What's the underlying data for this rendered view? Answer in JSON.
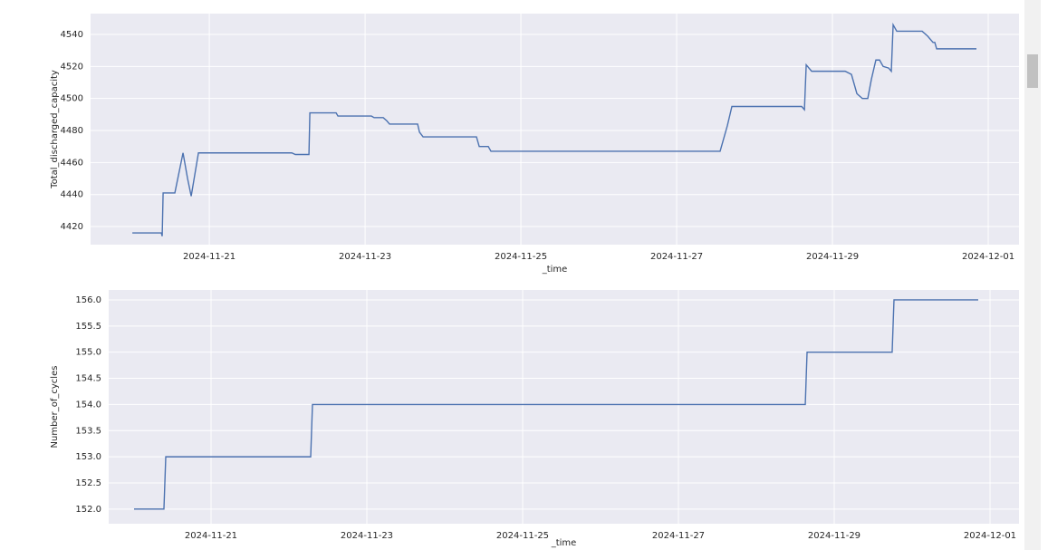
{
  "chart_data": [
    {
      "type": "line",
      "x_label": "_time",
      "y_label": "Total_discharged_capacity",
      "color": "#4c72b0",
      "grid": true,
      "xlim": [
        "2024-11-19T11:25",
        "2024-12-01T09:29"
      ],
      "xticks": [
        "2024-11-21",
        "2024-11-23",
        "2024-11-25",
        "2024-11-27",
        "2024-11-29",
        "2024-12-01"
      ],
      "ylim": [
        4408.7,
        4553
      ],
      "yticks": [
        4420,
        4440,
        4460,
        4480,
        4500,
        4520,
        4540
      ],
      "x": [
        "2024-11-20T00:17",
        "2024-11-20T09:13",
        "2024-11-20T09:29",
        "2024-11-20T09:46",
        "2024-11-20T13:23",
        "2024-11-20T15:54",
        "2024-11-20T17:18",
        "2024-11-20T18:25",
        "2024-11-20T20:39",
        "2024-11-22T01:24",
        "2024-11-22T02:31",
        "2024-11-22T06:42",
        "2024-11-22T06:59",
        "2024-11-22T15:04",
        "2024-11-22T15:38",
        "2024-11-23T01:57",
        "2024-11-23T02:47",
        "2024-11-23T05:35",
        "2024-11-23T06:42",
        "2024-11-23T07:32",
        "2024-11-23T16:11",
        "2024-11-23T16:45",
        "2024-11-23T17:52",
        "2024-11-24T10:19",
        "2024-11-24T11:10",
        "2024-11-24T13:57",
        "2024-11-24T14:47",
        "2024-11-27T13:23",
        "2024-11-27T15:37",
        "2024-11-27T17:01",
        "2024-11-28T14:31",
        "2024-11-28T15:22",
        "2024-11-28T15:55",
        "2024-11-28T17:35",
        "2024-11-29T03:55",
        "2024-11-29T05:51",
        "2024-11-29T07:32",
        "2024-11-29T09:12",
        "2024-11-29T10:53",
        "2024-11-29T12:00",
        "2024-11-29T13:23",
        "2024-11-29T14:31",
        "2024-11-29T15:37",
        "2024-11-29T17:18",
        "2024-11-29T18:08",
        "2024-11-29T18:42",
        "2024-11-29T19:49",
        "2024-11-30T03:38",
        "2024-11-30T05:18",
        "2024-11-30T06:59",
        "2024-11-30T07:32",
        "2024-11-30T08:06",
        "2024-11-30T20:22"
      ],
      "values": [
        4416,
        4416,
        4414,
        4441,
        4441,
        4466,
        4450,
        4439,
        4466,
        4466,
        4465,
        4465,
        4491,
        4491,
        4489,
        4489,
        4488,
        4488,
        4486,
        4484,
        4484,
        4479,
        4476,
        4476,
        4470,
        4470,
        4467,
        4467,
        4483,
        4495,
        4495,
        4493,
        4521,
        4517,
        4517,
        4515,
        4503,
        4500,
        4500,
        4512,
        4524,
        4524,
        4520,
        4519,
        4517,
        4546,
        4542,
        4542,
        4539,
        4535,
        4535,
        4531,
        4531
      ]
    },
    {
      "type": "line",
      "x_label": "_time",
      "y_label": "Number_of_cycles",
      "color": "#4c72b0",
      "grid": true,
      "xlim": [
        "2024-11-19T16:28",
        "2024-12-01T08:56"
      ],
      "xticks": [
        "2024-11-21",
        "2024-11-23",
        "2024-11-25",
        "2024-11-27",
        "2024-11-29",
        "2024-12-01"
      ],
      "ylim": [
        151.72,
        156.19
      ],
      "yticks": [
        {
          "value": 152,
          "label": "152.0"
        },
        152.5,
        {
          "value": 153,
          "label": "153.0"
        },
        153.5,
        {
          "value": 154,
          "label": "154.0"
        },
        154.5,
        {
          "value": 155,
          "label": "155.0"
        },
        155.5,
        {
          "value": 156,
          "label": "156.0"
        }
      ],
      "x": [
        "2024-11-20T00:17",
        "2024-11-20T09:29",
        "2024-11-20T10:03",
        "2024-11-22T06:42",
        "2024-11-22T07:15",
        "2024-11-28T15:05",
        "2024-11-28T15:38",
        "2024-11-29T17:51",
        "2024-11-29T18:25",
        "2024-11-30T20:22"
      ],
      "values": [
        152,
        152,
        153,
        153,
        154,
        154,
        155,
        155,
        156,
        156
      ]
    }
  ]
}
